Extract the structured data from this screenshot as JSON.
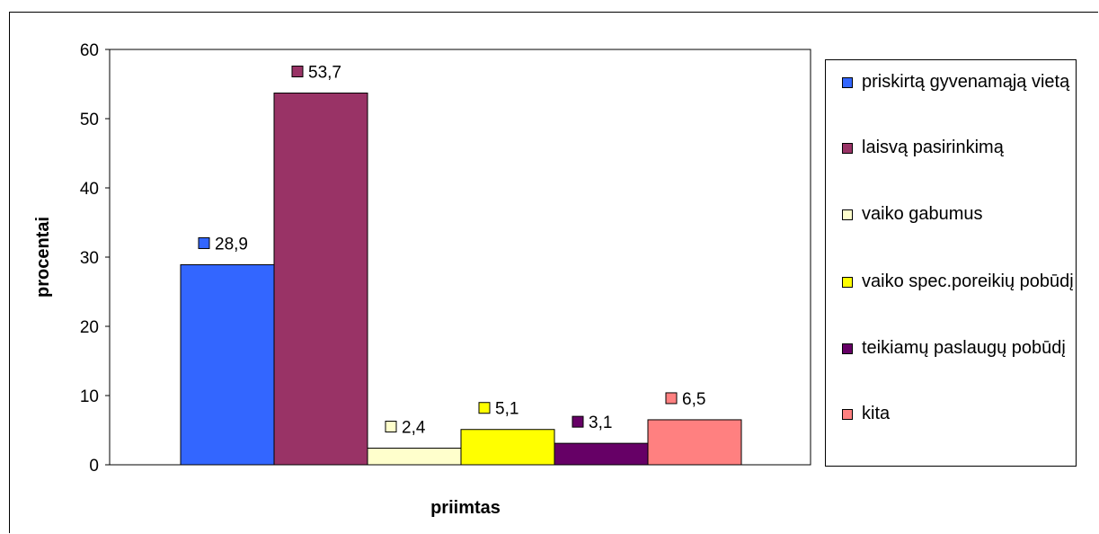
{
  "chart_data": {
    "type": "bar",
    "title": "",
    "xlabel": "priimtas",
    "ylabel": "procentai",
    "ylim": [
      0,
      60
    ],
    "yticks": [
      "0",
      "10",
      "20",
      "30",
      "40",
      "50",
      "60"
    ],
    "grid": false,
    "legend_position": "right",
    "categories": [
      "priimtas"
    ],
    "series": [
      {
        "name": "priskirtą gyvenamąją vietą",
        "values": [
          28.9
        ],
        "label": "28,9",
        "color": "#3366ff"
      },
      {
        "name": "laisvą pasirinkimą",
        "values": [
          53.7
        ],
        "label": "53,7",
        "color": "#993366"
      },
      {
        "name": "vaiko gabumus",
        "values": [
          2.4
        ],
        "label": "2,4",
        "color": "#ffffcc"
      },
      {
        "name": "vaiko spec.poreikių pobūdį",
        "values": [
          5.1
        ],
        "label": "5,1",
        "color": "#ffff00"
      },
      {
        "name": "teikiamų paslaugų pobūdį",
        "values": [
          3.1
        ],
        "label": "3,1",
        "color": "#660066"
      },
      {
        "name": "kita",
        "values": [
          6.5
        ],
        "label": "6,5",
        "color": "#ff8080"
      }
    ]
  }
}
